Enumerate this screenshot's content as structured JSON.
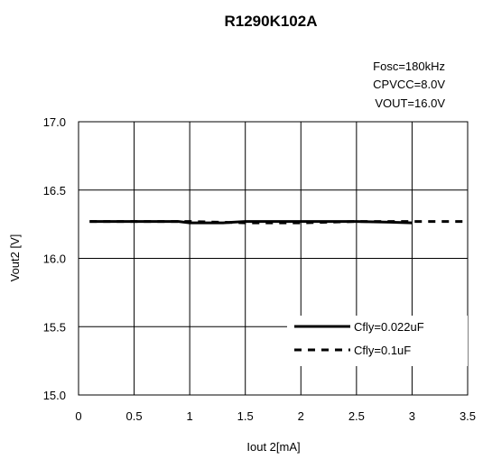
{
  "chart_data": {
    "type": "line",
    "title": "R1290K102A",
    "xlabel": "Iout 2[mA]",
    "ylabel": "Vout2 [V]",
    "xlim": [
      0,
      3.5
    ],
    "ylim": [
      15.0,
      17.0
    ],
    "xticks": [
      "0",
      "0.5",
      "1",
      "1.5",
      "2",
      "2.5",
      "3",
      "3.5"
    ],
    "yticks": [
      "15.0",
      "15.5",
      "16.0",
      "16.5",
      "17.0"
    ],
    "grid": true,
    "legend_position": "bottom-right",
    "conditions": [
      "Fosc=180kHz",
      "CPVCC=8.0V",
      "VOUT=16.0V"
    ],
    "series": [
      {
        "name": "Cfly=0.022uF",
        "style": "solid",
        "x": [
          0.1,
          0.5,
          0.9,
          1.0,
          1.3,
          1.5,
          2.0,
          2.5,
          2.8,
          3.0
        ],
        "y": [
          16.27,
          16.27,
          16.27,
          16.26,
          16.26,
          16.27,
          16.27,
          16.27,
          16.265,
          16.26
        ]
      },
      {
        "name": "Cfly=0.1uF",
        "style": "dashed",
        "x": [
          0.1,
          0.5,
          1.0,
          1.5,
          2.0,
          2.5,
          3.0,
          3.5
        ],
        "y": [
          16.27,
          16.27,
          16.27,
          16.26,
          16.26,
          16.27,
          16.27,
          16.27
        ]
      }
    ]
  }
}
